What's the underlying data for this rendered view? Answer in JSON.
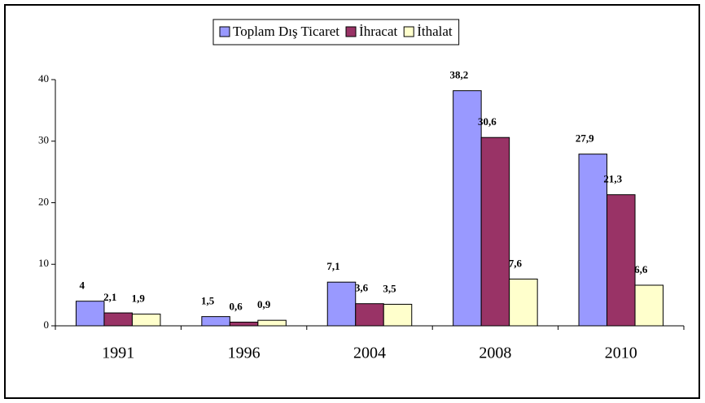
{
  "chart_data": {
    "type": "bar",
    "categories": [
      "1991",
      "1996",
      "2004",
      "2008",
      "2010"
    ],
    "series": [
      {
        "name": "Toplam Dış Ticaret",
        "color": "#9999ff",
        "values": [
          4,
          1.5,
          7.1,
          38.2,
          27.9
        ],
        "value_labels": [
          "4",
          "1,5",
          "7,1",
          "38,2",
          "27,9"
        ]
      },
      {
        "name": "İhracat",
        "color": "#993366",
        "values": [
          2.1,
          0.6,
          3.6,
          30.6,
          21.3
        ],
        "value_labels": [
          "2,1",
          "0,6",
          "3,6",
          "30,6",
          "21,3"
        ]
      },
      {
        "name": "İthalat",
        "color": "#ffffcc",
        "values": [
          1.9,
          0.9,
          3.5,
          7.6,
          6.6
        ],
        "value_labels": [
          "1,9",
          "0,9",
          "3,5",
          "7,6",
          "6,6"
        ]
      }
    ],
    "ylim": [
      0,
      40
    ],
    "yticks": [
      0,
      10,
      20,
      30,
      40
    ],
    "legend": "top"
  }
}
